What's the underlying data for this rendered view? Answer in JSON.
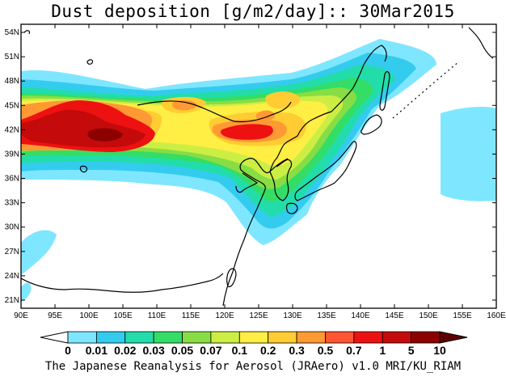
{
  "title": "Dust deposition [g/m2/day]:: 30Mar2015",
  "credit": "The Japanese Reanalysis for Aerosol (JRAero) v1.0 MRI/KU_RIAM",
  "map": {
    "lon_range": [
      90,
      160
    ],
    "lat_range": [
      20,
      55
    ],
    "lon_ticks": [
      "90E",
      "95E",
      "100E",
      "105E",
      "110E",
      "115E",
      "120E",
      "125E",
      "130E",
      "135E",
      "140E",
      "145E",
      "150E",
      "155E",
      "160E"
    ],
    "lat_ticks": [
      "21N",
      "24N",
      "27N",
      "30N",
      "33N",
      "36N",
      "39N",
      "42N",
      "45N",
      "48N",
      "51N",
      "54N"
    ]
  },
  "colorbar": {
    "labels": [
      "0",
      "0.01",
      "0.02",
      "0.03",
      "0.05",
      "0.07",
      "0.1",
      "0.2",
      "0.3",
      "0.5",
      "0.7",
      "1",
      "5",
      "10"
    ],
    "colors": [
      "#ffffff",
      "#7fe6ff",
      "#33ccee",
      "#22ddaa",
      "#33dd66",
      "#88dd44",
      "#ccee44",
      "#ffee44",
      "#ffcc33",
      "#ff9933",
      "#ff5533",
      "#ee1111",
      "#c40a0a",
      "#8c0000",
      "#5e0000"
    ]
  }
}
